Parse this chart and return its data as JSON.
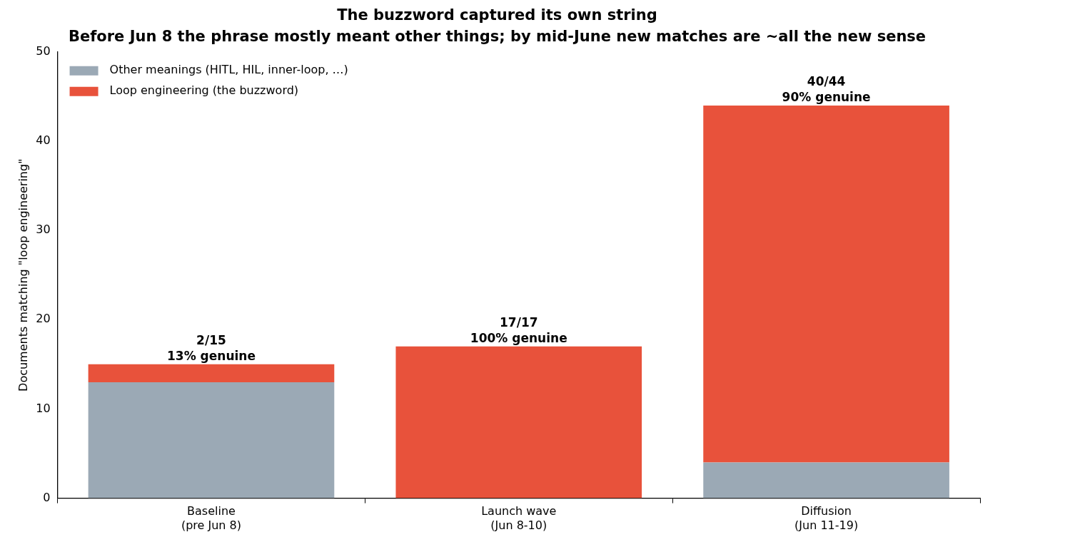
{
  "chart_data": {
    "type": "bar",
    "title": "The buzzword captured its own string",
    "subtitle": "Before Jun 8 the phrase mostly meant other things; by mid-June new matches are ~all the new sense",
    "ylabel": "Documents matching \"loop engineering\"",
    "categories": [
      "Baseline\n(pre Jun 8)",
      "Launch wave\n(Jun 8-10)",
      "Diffusion\n(Jun 11-19)"
    ],
    "stacked": true,
    "series": [
      {
        "name": "Other meanings (HITL, HIL, inner-loop, …)",
        "color": "#9ba9b5",
        "values": [
          13,
          0,
          4
        ]
      },
      {
        "name": "Loop engineering (the buzzword)",
        "color": "#e8523b",
        "values": [
          2,
          17,
          40
        ]
      }
    ],
    "ylim": [
      0,
      50
    ],
    "yticks": [
      0,
      10,
      20,
      30,
      40,
      50
    ],
    "legend": "top left",
    "annotations": [
      {
        "text": "2/15\n13% genuine",
        "x": "Baseline\n(pre Jun 8)",
        "y": 15
      },
      {
        "text": "17/17\n100% genuine",
        "x": "Launch wave\n(Jun 8-10)",
        "y": 17
      },
      {
        "text": "40/44\n90% genuine",
        "x": "Diffusion\n(Jun 11-19)",
        "y": 44
      }
    ]
  }
}
